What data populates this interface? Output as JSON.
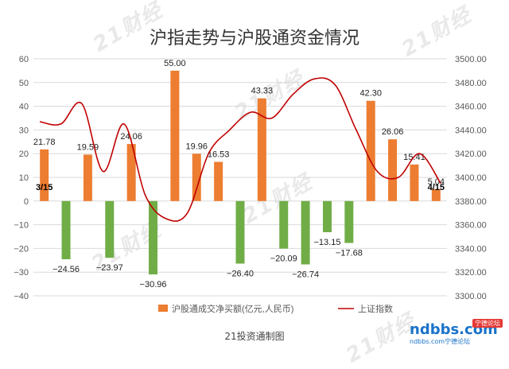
{
  "chart_data": {
    "type": "bar",
    "title": "沪指走势与沪股通资金情况",
    "credit": "21投资通制图",
    "watermark": "21财经",
    "logo": {
      "main": "ndbbs.com",
      "sub": "ndbbs.com宁德论坛",
      "tag": "宁德论坛"
    },
    "y_left": {
      "lim": [
        -40,
        60
      ],
      "ticks": [
        60,
        50,
        40,
        30,
        20,
        10,
        0,
        -10,
        -20,
        -30,
        -40
      ],
      "tick_labels": [
        "60",
        "50",
        "40",
        "30",
        "20",
        "10",
        "0",
        "−10",
        "−20",
        "−30",
        "−40"
      ]
    },
    "y_right": {
      "lim": [
        3300,
        3500
      ],
      "ticks": [
        3500,
        3480,
        3460,
        3440,
        3420,
        3400,
        3380,
        3360,
        3340,
        3320,
        3300
      ],
      "tick_labels": [
        "3500.00",
        "3480.00",
        "3460.00",
        "3440.00",
        "3420.00",
        "3400.00",
        "3380.00",
        "3360.00",
        "3340.00",
        "3320.00",
        "3300.00"
      ]
    },
    "grid": true,
    "legend_position": "bottom",
    "start_label": "3/15",
    "end_label": "4/15",
    "series": [
      {
        "name": "沪股通成交净买额(亿元,人民币)",
        "type": "bar",
        "values": [
          21.78,
          -24.56,
          19.59,
          -23.97,
          24.06,
          -30.96,
          55.0,
          19.96,
          16.53,
          -26.4,
          43.33,
          -20.09,
          -26.74,
          -13.15,
          -17.68,
          42.3,
          26.06,
          15.41,
          5.04
        ],
        "labels": [
          "21.78",
          "−24.56",
          "19.59",
          "−23.97",
          "24.06",
          "−30.96",
          "55.00",
          "19.96",
          "16.53",
          "−26.40",
          "43.33",
          "−20.09",
          "−26.74",
          "−13.15",
          "−17.68",
          "42.30",
          "26.06",
          "15.41",
          "5.04"
        ]
      },
      {
        "name": "上证指数",
        "type": "line",
        "values": [
          3447,
          3445,
          3462,
          3405,
          3445,
          3385,
          3365,
          3370,
          3420,
          3440,
          3455,
          3450,
          3470,
          3483,
          3478,
          3440,
          3405,
          3400,
          3420,
          3395
        ]
      }
    ],
    "colors": {
      "positive": "#ed7d31",
      "negative": "#70ad47",
      "line": "#c00000",
      "grid": "#d9d9d9",
      "axis_text": "#595959"
    }
  }
}
